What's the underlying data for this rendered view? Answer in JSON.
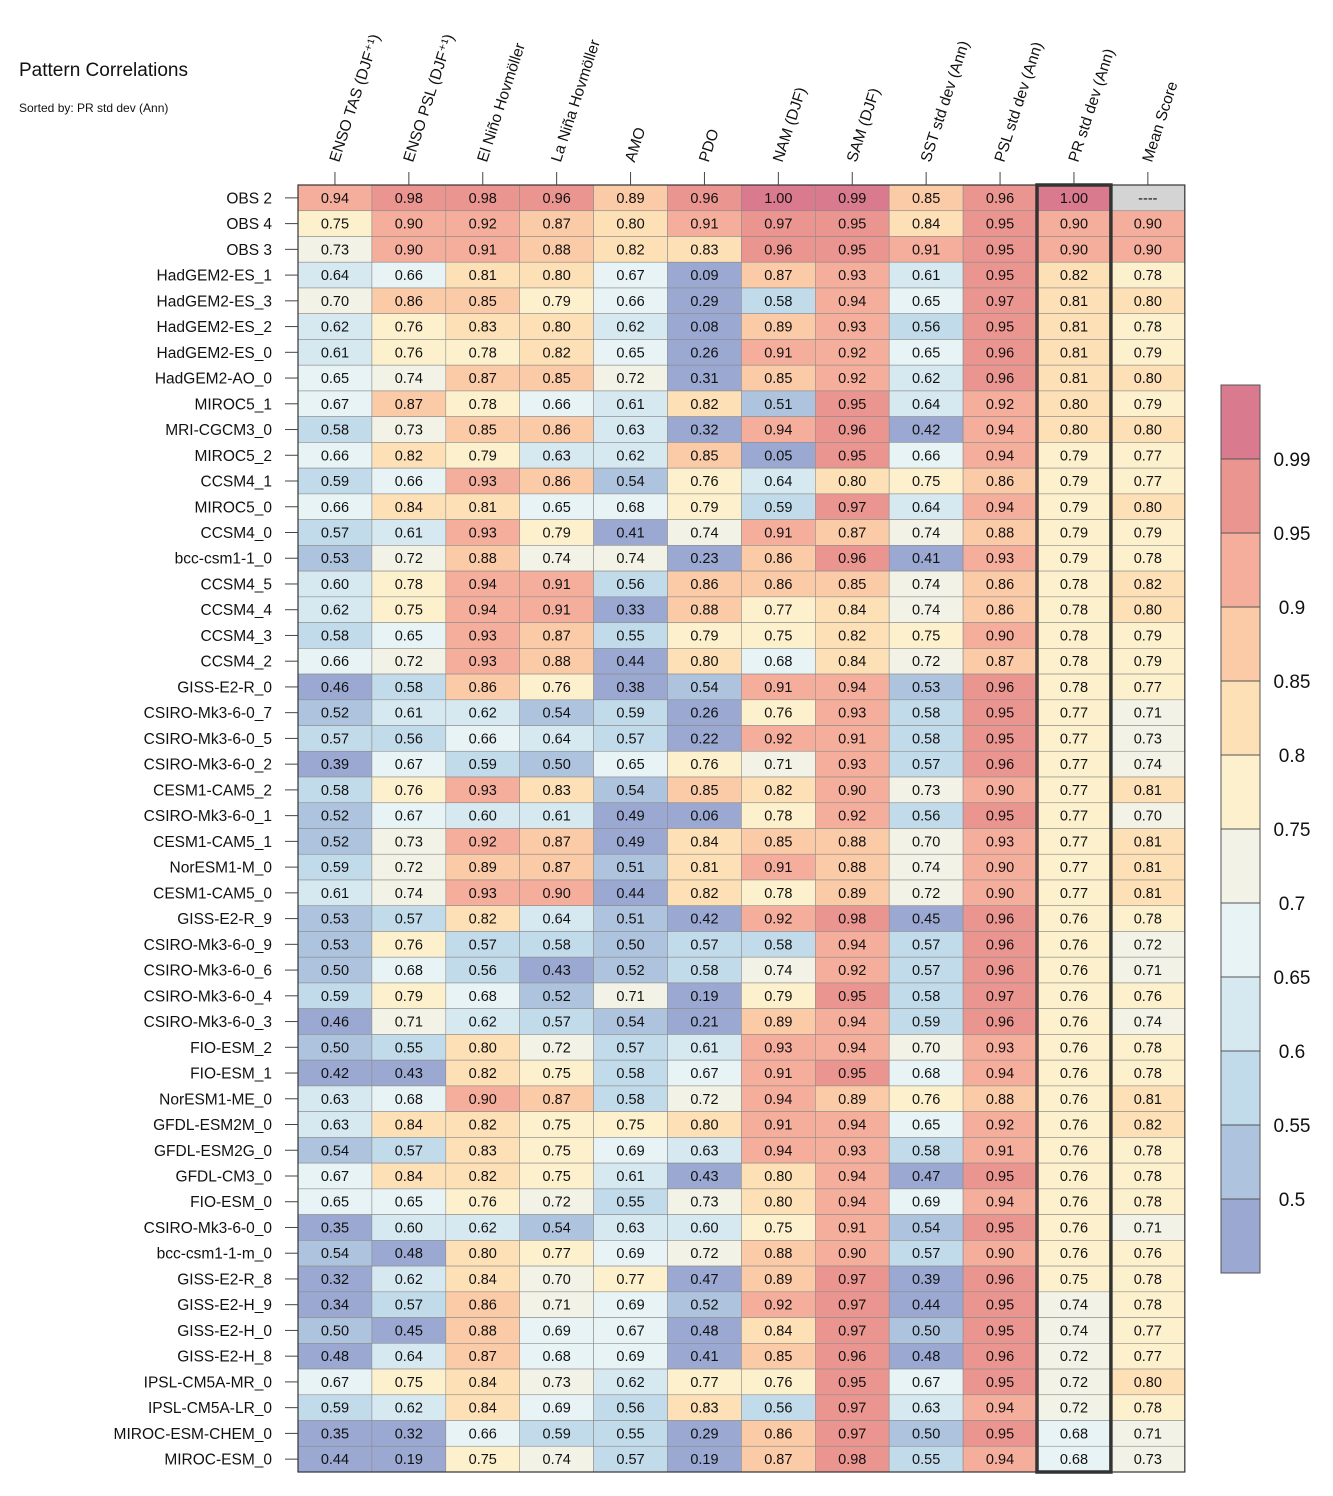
{
  "title": "Pattern Correlations",
  "subtitle": "Sorted by: PR std dev (Ann)",
  "chart_data": {
    "type": "heatmap",
    "title": "Pattern Correlations",
    "subtitle": "Sorted by: PR std dev (Ann)",
    "columns": [
      "ENSO TAS (DJF⁺¹)",
      "ENSO PSL (DJF⁺¹)",
      "El Niño Hovmöller",
      "La Niña Hovmöller",
      "AMO",
      "PDO",
      "NAM (DJF)",
      "SAM (DJF)",
      "SST std dev (Ann)",
      "PSL std dev (Ann)",
      "PR std dev (Ann)",
      "Mean Score"
    ],
    "highlighted_column": "PR std dev (Ann)",
    "missing_label": "----",
    "rows": [
      "OBS 2",
      "OBS 4",
      "OBS 3",
      "HadGEM2-ES_1",
      "HadGEM2-ES_3",
      "HadGEM2-ES_2",
      "HadGEM2-ES_0",
      "HadGEM2-AO_0",
      "MIROC5_1",
      "MRI-CGCM3_0",
      "MIROC5_2",
      "CCSM4_1",
      "MIROC5_0",
      "CCSM4_0",
      "bcc-csm1-1_0",
      "CCSM4_5",
      "CCSM4_4",
      "CCSM4_3",
      "CCSM4_2",
      "GISS-E2-R_0",
      "CSIRO-Mk3-6-0_7",
      "CSIRO-Mk3-6-0_5",
      "CSIRO-Mk3-6-0_2",
      "CESM1-CAM5_2",
      "CSIRO-Mk3-6-0_1",
      "CESM1-CAM5_1",
      "NorESM1-M_0",
      "CESM1-CAM5_0",
      "GISS-E2-R_9",
      "CSIRO-Mk3-6-0_9",
      "CSIRO-Mk3-6-0_6",
      "CSIRO-Mk3-6-0_4",
      "CSIRO-Mk3-6-0_3",
      "FIO-ESM_2",
      "FIO-ESM_1",
      "NorESM1-ME_0",
      "GFDL-ESM2M_0",
      "GFDL-ESM2G_0",
      "GFDL-CM3_0",
      "FIO-ESM_0",
      "CSIRO-Mk3-6-0_0",
      "bcc-csm1-1-m_0",
      "GISS-E2-R_8",
      "GISS-E2-H_9",
      "GISS-E2-H_0",
      "GISS-E2-H_8",
      "IPSL-CM5A-MR_0",
      "IPSL-CM5A-LR_0",
      "MIROC-ESM-CHEM_0",
      "MIROC-ESM_0"
    ],
    "values": [
      [
        0.94,
        0.98,
        0.98,
        0.96,
        0.89,
        0.96,
        1.0,
        0.99,
        0.85,
        0.96,
        1.0,
        null
      ],
      [
        0.75,
        0.9,
        0.92,
        0.87,
        0.8,
        0.91,
        0.97,
        0.95,
        0.84,
        0.95,
        0.9,
        0.9
      ],
      [
        0.73,
        0.9,
        0.91,
        0.88,
        0.82,
        0.83,
        0.96,
        0.95,
        0.91,
        0.95,
        0.9,
        0.9
      ],
      [
        0.64,
        0.66,
        0.81,
        0.8,
        0.67,
        0.09,
        0.87,
        0.93,
        0.61,
        0.95,
        0.82,
        0.78
      ],
      [
        0.7,
        0.86,
        0.85,
        0.79,
        0.66,
        0.29,
        0.58,
        0.94,
        0.65,
        0.97,
        0.81,
        0.8
      ],
      [
        0.62,
        0.76,
        0.83,
        0.8,
        0.62,
        0.08,
        0.89,
        0.93,
        0.56,
        0.95,
        0.81,
        0.78
      ],
      [
        0.61,
        0.76,
        0.78,
        0.82,
        0.65,
        0.26,
        0.91,
        0.92,
        0.65,
        0.96,
        0.81,
        0.79
      ],
      [
        0.65,
        0.74,
        0.87,
        0.85,
        0.72,
        0.31,
        0.85,
        0.92,
        0.62,
        0.96,
        0.81,
        0.8
      ],
      [
        0.67,
        0.87,
        0.78,
        0.66,
        0.61,
        0.82,
        0.51,
        0.95,
        0.64,
        0.92,
        0.8,
        0.79
      ],
      [
        0.58,
        0.73,
        0.85,
        0.86,
        0.63,
        0.32,
        0.94,
        0.96,
        0.42,
        0.94,
        0.8,
        0.8
      ],
      [
        0.66,
        0.82,
        0.79,
        0.63,
        0.62,
        0.85,
        0.05,
        0.95,
        0.66,
        0.94,
        0.79,
        0.77
      ],
      [
        0.59,
        0.66,
        0.93,
        0.86,
        0.54,
        0.76,
        0.64,
        0.8,
        0.75,
        0.86,
        0.79,
        0.77
      ],
      [
        0.66,
        0.84,
        0.81,
        0.65,
        0.68,
        0.79,
        0.59,
        0.97,
        0.64,
        0.94,
        0.79,
        0.8
      ],
      [
        0.57,
        0.61,
        0.93,
        0.79,
        0.41,
        0.74,
        0.91,
        0.87,
        0.74,
        0.88,
        0.79,
        0.79
      ],
      [
        0.53,
        0.72,
        0.88,
        0.74,
        0.74,
        0.23,
        0.86,
        0.96,
        0.41,
        0.93,
        0.79,
        0.78
      ],
      [
        0.6,
        0.78,
        0.94,
        0.91,
        0.56,
        0.86,
        0.86,
        0.85,
        0.74,
        0.86,
        0.78,
        0.82
      ],
      [
        0.62,
        0.75,
        0.94,
        0.91,
        0.33,
        0.88,
        0.77,
        0.84,
        0.74,
        0.86,
        0.78,
        0.8
      ],
      [
        0.58,
        0.65,
        0.93,
        0.87,
        0.55,
        0.79,
        0.75,
        0.82,
        0.75,
        0.9,
        0.78,
        0.79
      ],
      [
        0.66,
        0.72,
        0.93,
        0.88,
        0.44,
        0.8,
        0.68,
        0.84,
        0.72,
        0.87,
        0.78,
        0.79
      ],
      [
        0.46,
        0.58,
        0.86,
        0.76,
        0.38,
        0.54,
        0.91,
        0.94,
        0.53,
        0.96,
        0.78,
        0.77
      ],
      [
        0.52,
        0.61,
        0.62,
        0.54,
        0.59,
        0.26,
        0.76,
        0.93,
        0.58,
        0.95,
        0.77,
        0.71
      ],
      [
        0.57,
        0.56,
        0.66,
        0.64,
        0.57,
        0.22,
        0.92,
        0.91,
        0.58,
        0.95,
        0.77,
        0.73
      ],
      [
        0.39,
        0.67,
        0.59,
        0.5,
        0.65,
        0.76,
        0.71,
        0.93,
        0.57,
        0.96,
        0.77,
        0.74
      ],
      [
        0.58,
        0.76,
        0.93,
        0.83,
        0.54,
        0.85,
        0.82,
        0.9,
        0.73,
        0.9,
        0.77,
        0.81
      ],
      [
        0.52,
        0.67,
        0.6,
        0.61,
        0.49,
        0.06,
        0.78,
        0.92,
        0.56,
        0.95,
        0.77,
        0.7
      ],
      [
        0.52,
        0.73,
        0.92,
        0.87,
        0.49,
        0.84,
        0.85,
        0.88,
        0.7,
        0.93,
        0.77,
        0.81
      ],
      [
        0.59,
        0.72,
        0.89,
        0.87,
        0.51,
        0.81,
        0.91,
        0.88,
        0.74,
        0.9,
        0.77,
        0.81
      ],
      [
        0.61,
        0.74,
        0.93,
        0.9,
        0.44,
        0.82,
        0.78,
        0.89,
        0.72,
        0.9,
        0.77,
        0.81
      ],
      [
        0.53,
        0.57,
        0.82,
        0.64,
        0.51,
        0.42,
        0.92,
        0.98,
        0.45,
        0.96,
        0.76,
        0.78
      ],
      [
        0.53,
        0.76,
        0.57,
        0.58,
        0.5,
        0.57,
        0.58,
        0.94,
        0.57,
        0.96,
        0.76,
        0.72
      ],
      [
        0.5,
        0.68,
        0.56,
        0.43,
        0.52,
        0.58,
        0.74,
        0.92,
        0.57,
        0.96,
        0.76,
        0.71
      ],
      [
        0.59,
        0.79,
        0.68,
        0.52,
        0.71,
        0.19,
        0.79,
        0.95,
        0.58,
        0.97,
        0.76,
        0.76
      ],
      [
        0.46,
        0.71,
        0.62,
        0.57,
        0.54,
        0.21,
        0.89,
        0.94,
        0.59,
        0.96,
        0.76,
        0.74
      ],
      [
        0.5,
        0.55,
        0.8,
        0.72,
        0.57,
        0.61,
        0.93,
        0.94,
        0.7,
        0.93,
        0.76,
        0.78
      ],
      [
        0.42,
        0.43,
        0.82,
        0.75,
        0.58,
        0.67,
        0.91,
        0.95,
        0.68,
        0.94,
        0.76,
        0.78
      ],
      [
        0.63,
        0.68,
        0.9,
        0.87,
        0.58,
        0.72,
        0.94,
        0.89,
        0.76,
        0.88,
        0.76,
        0.81
      ],
      [
        0.63,
        0.84,
        0.82,
        0.75,
        0.75,
        0.8,
        0.91,
        0.94,
        0.65,
        0.92,
        0.76,
        0.82
      ],
      [
        0.54,
        0.57,
        0.83,
        0.75,
        0.69,
        0.63,
        0.94,
        0.93,
        0.58,
        0.91,
        0.76,
        0.78
      ],
      [
        0.67,
        0.84,
        0.82,
        0.75,
        0.61,
        0.43,
        0.8,
        0.94,
        0.47,
        0.95,
        0.76,
        0.78
      ],
      [
        0.65,
        0.65,
        0.76,
        0.72,
        0.55,
        0.73,
        0.8,
        0.94,
        0.69,
        0.94,
        0.76,
        0.78
      ],
      [
        0.35,
        0.6,
        0.62,
        0.54,
        0.63,
        0.6,
        0.75,
        0.91,
        0.54,
        0.95,
        0.76,
        0.71
      ],
      [
        0.54,
        0.48,
        0.8,
        0.77,
        0.69,
        0.72,
        0.88,
        0.9,
        0.57,
        0.9,
        0.76,
        0.76
      ],
      [
        0.32,
        0.62,
        0.84,
        0.7,
        0.77,
        0.47,
        0.89,
        0.97,
        0.39,
        0.96,
        0.75,
        0.78
      ],
      [
        0.34,
        0.57,
        0.86,
        0.71,
        0.69,
        0.52,
        0.92,
        0.97,
        0.44,
        0.95,
        0.74,
        0.78
      ],
      [
        0.5,
        0.45,
        0.88,
        0.69,
        0.67,
        0.48,
        0.84,
        0.97,
        0.5,
        0.95,
        0.74,
        0.77
      ],
      [
        0.48,
        0.64,
        0.87,
        0.68,
        0.69,
        0.41,
        0.85,
        0.96,
        0.48,
        0.96,
        0.72,
        0.77
      ],
      [
        0.67,
        0.75,
        0.84,
        0.73,
        0.62,
        0.77,
        0.76,
        0.95,
        0.67,
        0.95,
        0.72,
        0.8
      ],
      [
        0.59,
        0.62,
        0.84,
        0.69,
        0.56,
        0.83,
        0.56,
        0.97,
        0.63,
        0.94,
        0.72,
        0.78
      ],
      [
        0.35,
        0.32,
        0.66,
        0.59,
        0.55,
        0.29,
        0.86,
        0.97,
        0.5,
        0.95,
        0.68,
        0.71
      ],
      [
        0.44,
        0.19,
        0.75,
        0.74,
        0.57,
        0.19,
        0.87,
        0.98,
        0.55,
        0.94,
        0.68,
        0.73
      ]
    ],
    "colorbar": {
      "tick_labels": [
        "0.99",
        "0.95",
        "0.9",
        "0.85",
        "0.8",
        "0.75",
        "0.7",
        "0.65",
        "0.6",
        "0.55",
        "0.5"
      ],
      "levels": [
        0.5,
        0.55,
        0.6,
        0.65,
        0.7,
        0.75,
        0.8,
        0.85,
        0.9,
        0.95,
        0.99
      ],
      "colors": [
        "#9aa8d2",
        "#aec4de",
        "#c2dbea",
        "#d6e9f1",
        "#e8f3f6",
        "#f3f2e6",
        "#fdf0cc",
        "#fde0b6",
        "#fbcaa6",
        "#f5ae9c",
        "#eb9590",
        "#d97a8e"
      ],
      "missing_color": "#d4d4d4"
    }
  }
}
